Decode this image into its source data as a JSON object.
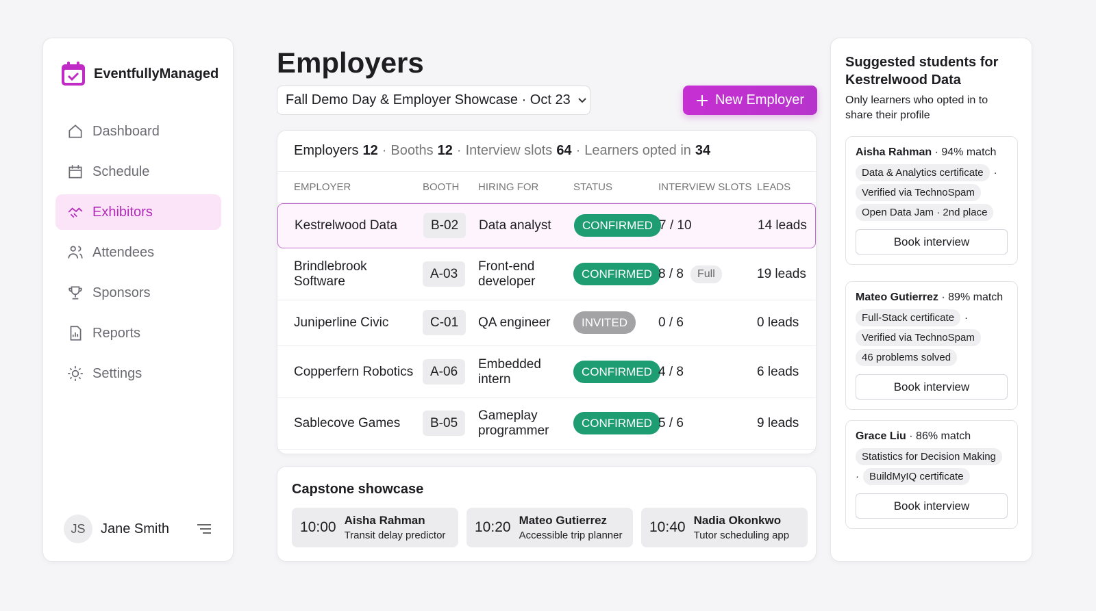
{
  "app": {
    "name": "EventfullyManaged"
  },
  "separator": "·",
  "nav": {
    "items": [
      "Dashboard",
      "Schedule",
      "Exhibitors",
      "Attendees",
      "Sponsors",
      "Reports",
      "Settings"
    ],
    "active": 2
  },
  "user": {
    "initials": "JS",
    "name": "Jane Smith"
  },
  "page": {
    "title": "Employers",
    "event": "Fall Demo Day & Employer Showcase · Oct 23",
    "action": "New Employer"
  },
  "summary": [
    {
      "label": "Employers",
      "value": 12
    },
    {
      "label": "Booths",
      "value": 12
    },
    {
      "label": "Interview slots",
      "value": 64
    },
    {
      "label": "Learners opted in",
      "value": 34
    }
  ],
  "table": {
    "columns": [
      "EMPLOYER",
      "BOOTH",
      "HIRING FOR",
      "STATUS",
      "INTERVIEW SLOTS",
      "LEADS"
    ],
    "selected_row": 0,
    "rows": [
      {
        "employer": "Kestrelwood Data",
        "booth": "B-02",
        "hiring_for": "Data analyst",
        "status": "CONFIRMED",
        "status_color": "#1f9d72",
        "slots": "7 / 10",
        "leads": "14 leads"
      },
      {
        "employer": "Brindlebrook Software",
        "booth": "A-03",
        "hiring_for": "Front-end developer",
        "status": "CONFIRMED",
        "status_color": "#1f9d72",
        "slots": "8 / 8",
        "badge": "Full",
        "leads": "19 leads"
      },
      {
        "employer": "Juniperline Civic",
        "booth": "C-01",
        "hiring_for": "QA engineer",
        "status": "INVITED",
        "status_color": "#a3a3a6",
        "slots": "0 / 6",
        "leads": "0 leads"
      },
      {
        "employer": "Copperfern Robotics",
        "booth": "A-06",
        "hiring_for": "Embedded intern",
        "status": "CONFIRMED",
        "status_color": "#1f9d72",
        "slots": "4 / 8",
        "leads": "6 leads"
      },
      {
        "employer": "Sablecove Games",
        "booth": "B-05",
        "hiring_for": "Gameplay programmer",
        "status": "CONFIRMED",
        "status_color": "#1f9d72",
        "slots": "5 / 6",
        "leads": "9 leads"
      }
    ]
  },
  "capstone": {
    "title": "Capstone showcase",
    "slots": [
      {
        "time": "10:00",
        "name": "Aisha Rahman",
        "project": "Transit delay predictor"
      },
      {
        "time": "10:20",
        "name": "Mateo Gutierrez",
        "project": "Accessible trip planner"
      },
      {
        "time": "10:40",
        "name": "Nadia Okonkwo",
        "project": "Tutor scheduling app"
      }
    ]
  },
  "suggestions": {
    "title": "Suggested students for Kestrelwood Data",
    "subtitle": "Only learners who opted in to share their profile",
    "students": [
      {
        "name": "Aisha Rahman",
        "match": "94% match",
        "tags": [
          "Data & Analytics certificate",
          "Verified via TechnoSpam",
          "Open Data Jam · 2nd place"
        ],
        "action": "Book interview"
      },
      {
        "name": "Mateo Gutierrez",
        "match": "89% match",
        "tags": [
          "Full-Stack certificate",
          "Verified via TechnoSpam",
          "46 problems solved"
        ],
        "action": "Book interview"
      },
      {
        "name": "Grace Liu",
        "match": "86% match",
        "tags": [
          "Statistics for Decision Making",
          "BuildMyIQ certificate"
        ],
        "action": "Book interview"
      }
    ]
  }
}
